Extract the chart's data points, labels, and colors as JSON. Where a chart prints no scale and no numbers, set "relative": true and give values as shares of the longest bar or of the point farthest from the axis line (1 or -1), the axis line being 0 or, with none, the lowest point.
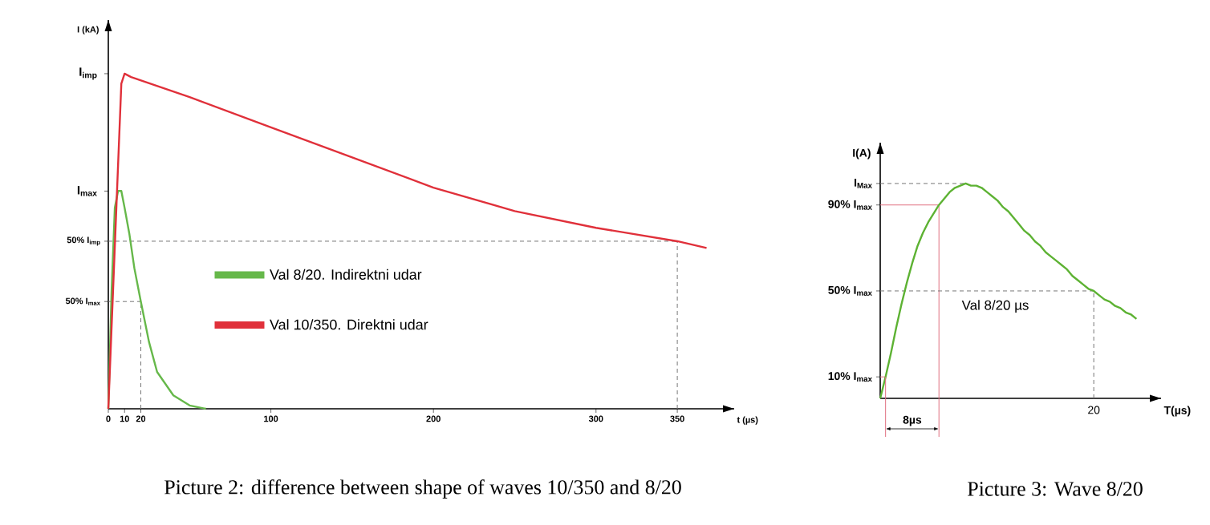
{
  "chart_data": [
    {
      "type": "line",
      "title": "Picture 2: difference between shape of waves 10/350 and 8/20",
      "xlabel": "t (µs)",
      "ylabel": "I (kA)",
      "relative": true,
      "xlim": [
        0,
        385
      ],
      "xticks": [
        0,
        10,
        20,
        100,
        200,
        300,
        350
      ],
      "legend": "center",
      "series": [
        {
          "name": "Val 8/20. Indirektni udar",
          "color": "#66b84a",
          "x": [
            0,
            2,
            4,
            6,
            8,
            10,
            13,
            16,
            20,
            25,
            30,
            40,
            50,
            60
          ],
          "values": [
            0,
            0.35,
            0.6,
            0.65,
            0.65,
            0.6,
            0.52,
            0.42,
            0.32,
            0.2,
            0.11,
            0.04,
            0.01,
            0
          ]
        },
        {
          "name": "Val 10/350. Direktni udar",
          "color": "#e0303a",
          "x": [
            0,
            8,
            10,
            14,
            50,
            100,
            150,
            200,
            250,
            300,
            350,
            368
          ],
          "values": [
            0,
            0.97,
            1,
            0.99,
            0.93,
            0.84,
            0.75,
            0.66,
            0.59,
            0.54,
            0.5,
            0.48
          ]
        }
      ],
      "ref_lines": [
        {
          "axis": "y",
          "value": 0.5,
          "label": "50% I$_{imp}$",
          "color": "#777777",
          "line_style": "dashed"
        },
        {
          "axis": "y",
          "value": 0.32,
          "label": "50% I$_{max}$",
          "color": "#777777",
          "line_style": "dashed"
        },
        {
          "axis": "x",
          "value": 350,
          "color": "#777777",
          "line_style": "dashed"
        },
        {
          "axis": "x",
          "value": 20,
          "color": "#777777",
          "line_style": "dashed"
        }
      ],
      "annotations": [
        "I$_{imp}$",
        "I$_{max}$"
      ]
    },
    {
      "type": "line",
      "title": "Picture 3: Wave 8/20",
      "xlabel": "T(µs)",
      "ylabel": "I(A)",
      "relative": true,
      "categories": [
        null,
        null,
        null,
        null,
        null,
        null,
        null,
        null,
        null,
        null,
        null,
        null,
        null,
        null,
        null,
        null,
        null,
        null,
        null,
        null,
        null,
        null,
        null,
        null,
        null,
        null,
        null,
        null,
        null,
        null,
        null,
        null,
        null,
        null,
        null,
        null,
        null,
        null,
        null,
        null,
        null,
        null,
        null,
        null,
        null,
        null,
        null,
        null,
        null
      ],
      "series": [
        {
          "color": "#5db233",
          "values": [
            0,
            0.1,
            0.21,
            0.33,
            0.44,
            0.54,
            0.63,
            0.71,
            0.77,
            0.82,
            0.86,
            0.9,
            0.93,
            0.96,
            0.98,
            0.99,
            1,
            0.99,
            0.99,
            0.98,
            0.96,
            0.94,
            0.92,
            0.89,
            0.87,
            0.84,
            0.81,
            0.78,
            0.76,
            0.73,
            0.71,
            0.68,
            0.66,
            0.64,
            0.62,
            0.6,
            0.57,
            0.55,
            0.53,
            0.51,
            0.5,
            0.48,
            0.46,
            0.45,
            0.43,
            0.42,
            0.4,
            0.39,
            0.37
          ]
        }
      ],
      "ref_lines": [
        {
          "axis": "y",
          "value": 0.9,
          "label": "90% I$_{max}$",
          "color": "#e07080",
          "line_style": "solid"
        },
        {
          "axis": "y",
          "value": 0.5,
          "label": "50% I$_{max}$",
          "color": "#777777",
          "line_style": "dashed"
        },
        {
          "axis": "y",
          "value": 0.1,
          "label": "10% I$_{max}$",
          "color": "#e07080",
          "line_style": "solid"
        },
        {
          "axis": "y",
          "value": 1,
          "label": "I$_{Max}$",
          "color": "#777777",
          "line_style": "dashed"
        }
      ],
      "annotations": [
        "20",
        "8µs",
        "Val 8/20 µs"
      ]
    }
  ]
}
